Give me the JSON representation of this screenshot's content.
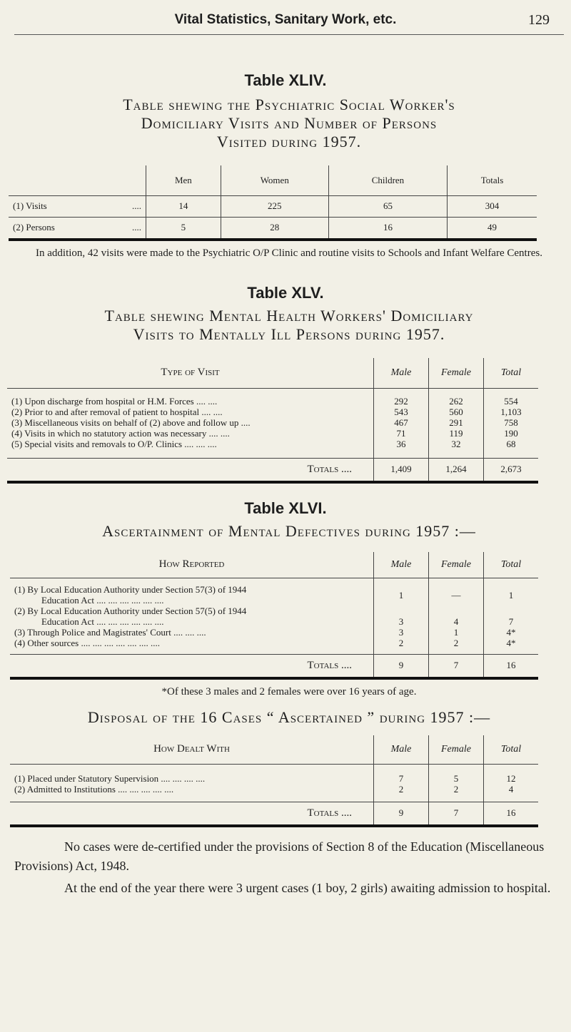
{
  "header": {
    "running_title": "Vital Statistics, Sanitary Work, etc.",
    "page_number": "129"
  },
  "t44": {
    "label": "Table XLIV.",
    "title_lines": [
      "Table shewing the Psychiatric Social Worker's",
      "Domiciliary Visits and Number of Persons",
      "Visited during 1957."
    ],
    "columns": [
      "Men",
      "Women",
      "Children",
      "Totals"
    ],
    "rows": [
      {
        "label": "(1)  Visits",
        "dots": "....",
        "values": [
          "14",
          "225",
          "65",
          "304"
        ]
      },
      {
        "label": "(2)  Persons",
        "dots": "....",
        "values": [
          "5",
          "28",
          "16",
          "49"
        ]
      }
    ],
    "note": "In addition, 42 visits were made to the Psychiatric O/P Clinic and routine visits to Schools and Infant Welfare Centres."
  },
  "t45": {
    "label": "Table XLV.",
    "title_lines": [
      "Table shewing Mental Health Workers' Domiciliary",
      "Visits to Mentally Ill Persons during 1957."
    ],
    "columns": [
      "Type of Visit",
      "Male",
      "Female",
      "Total"
    ],
    "rows": [
      {
        "label": "(1)  Upon discharge from hospital or H.M. Forces  ....  ....",
        "values": [
          "292",
          "262",
          "554"
        ]
      },
      {
        "label": "(2)  Prior to and after removal of patient to hospital  ....  ....",
        "values": [
          "543",
          "560",
          "1,103"
        ]
      },
      {
        "label": "(3)  Miscellaneous visits on behalf of (2) above and follow up  ....",
        "values": [
          "467",
          "291",
          "758"
        ]
      },
      {
        "label": "(4)  Visits in which no statutory action was necessary  ....  ....",
        "values": [
          "71",
          "119",
          "190"
        ]
      },
      {
        "label": "(5)  Special visits and removals to O/P. Clinics  ....  ....  ....",
        "values": [
          "36",
          "32",
          "68"
        ]
      }
    ],
    "totals": {
      "label": "Totals ....",
      "values": [
        "1,409",
        "1,264",
        "2,673"
      ]
    }
  },
  "t46": {
    "label": "Table XLVI.",
    "title": "Ascertainment of Mental Defectives during 1957 :—",
    "columns": [
      "How Reported",
      "Male",
      "Female",
      "Total"
    ],
    "rows": [
      {
        "label": "(1)  By Local Education Authority under Section 57(3) of 1944",
        "label2": "Education Act  ....  ....  ....  ....  ....  ....",
        "values": [
          "1",
          "—",
          "1"
        ]
      },
      {
        "label": "(2)  By Local Education Authority under Section 57(5) of 1944",
        "label2": "Education Act  ....  ....  ....  ....  ....  ....",
        "values": [
          "3",
          "4",
          "7"
        ]
      },
      {
        "label": "(3)  Through Police and Magistrates' Court  ....  ....  ....",
        "values": [
          "3",
          "1",
          "4*"
        ]
      },
      {
        "label": "(4)  Other sources  ....  ....  ....  ....  ....  ....  ....",
        "values": [
          "2",
          "2",
          "4*"
        ]
      }
    ],
    "totals": {
      "label": "Totals ....",
      "values": [
        "9",
        "7",
        "16"
      ]
    },
    "footnote": "*Of these 3 males and 2 females were over 16 years of age."
  },
  "disposal": {
    "title": "Disposal of the 16 Cases “ Ascertained ” during 1957 :—",
    "columns": [
      "How Dealt With",
      "Male",
      "Female",
      "Total"
    ],
    "rows": [
      {
        "label": "(1)  Placed under Statutory Supervision  ....  ....  ....  ....",
        "values": [
          "7",
          "5",
          "12"
        ]
      },
      {
        "label": "(2)  Admitted to Institutions  ....  ....  ....  ....  ....",
        "values": [
          "2",
          "2",
          "4"
        ]
      }
    ],
    "totals": {
      "label": "Totals ....",
      "values": [
        "9",
        "7",
        "16"
      ]
    }
  },
  "paragraphs": [
    "No cases were de-certified under the provisions of Section 8 of the Education (Miscellaneous Provisions) Act, 1948.",
    "At the end of the year there were 3 urgent cases (1 boy, 2 girls) awaiting admission to hospital."
  ]
}
